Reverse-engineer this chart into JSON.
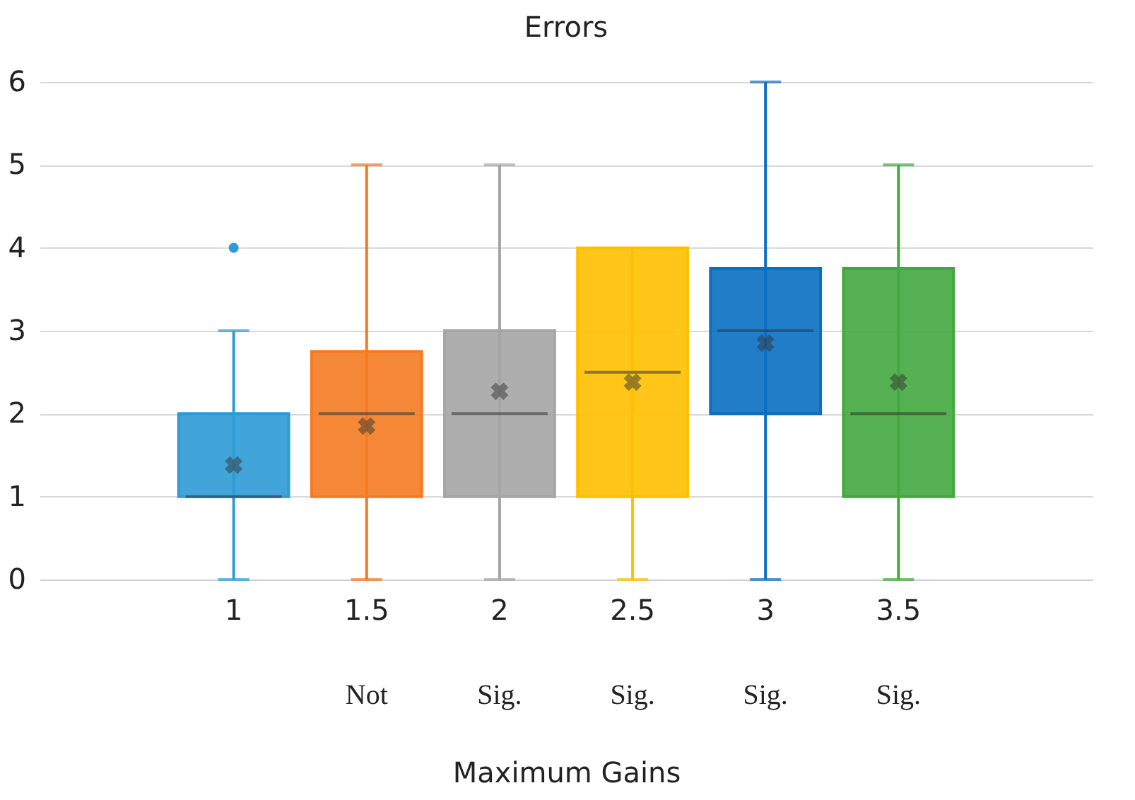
{
  "chart_data": {
    "type": "box",
    "title": "Errors",
    "xlabel": "Maximum Gains",
    "categories": [
      "1",
      "1.5",
      "2",
      "2.5",
      "3",
      "3.5"
    ],
    "colors": [
      "#2e9bd6",
      "#f47b20",
      "#a5a5a5",
      "#ffc000",
      "#0a6fc2",
      "#43a83f"
    ],
    "boxes": [
      {
        "low": 0,
        "q1": 1,
        "median": 1,
        "q3": 2,
        "high": 3,
        "mean": 1.38,
        "outliers": [
          4
        ]
      },
      {
        "low": 0,
        "q1": 1,
        "median": 2,
        "q3": 2.75,
        "high": 5,
        "mean": 1.85
      },
      {
        "low": 0,
        "q1": 1,
        "median": 2,
        "q3": 3,
        "high": 5,
        "mean": 2.27
      },
      {
        "low": 0,
        "q1": 1,
        "median": 2.5,
        "q3": 4,
        "high": 4,
        "mean": 2.38
      },
      {
        "low": 0,
        "q1": 2,
        "median": 3,
        "q3": 3.75,
        "high": 6,
        "mean": 2.85
      },
      {
        "low": 0,
        "q1": 1,
        "median": 2,
        "q3": 3.75,
        "high": 5,
        "mean": 2.38
      }
    ],
    "annotations": [
      "Not",
      "Sig.",
      "Sig.",
      "Sig.",
      "Sig."
    ],
    "ylim": [
      0,
      6
    ],
    "yticks": [
      0,
      1,
      2,
      3,
      4,
      5,
      6
    ],
    "grid": "y",
    "legend": false
  }
}
